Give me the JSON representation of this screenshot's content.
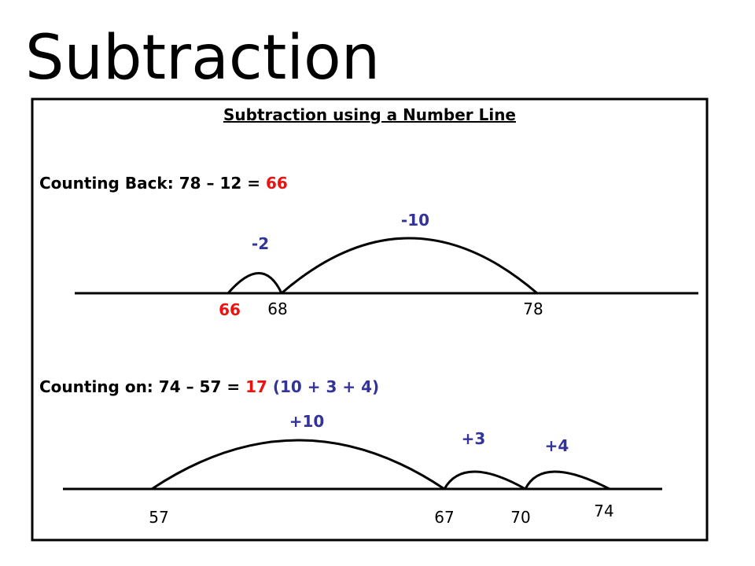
{
  "title": "Subtraction",
  "panel": {
    "heading": "Subtraction using a Number Line",
    "examples": [
      {
        "label": "Counting Back:",
        "expression": "78 – 12 =",
        "answer": "66",
        "jumps": [
          "-2",
          "-10"
        ],
        "marks": [
          "66",
          "68",
          "78"
        ]
      },
      {
        "label": "Counting on:",
        "expression": "74 – 57 =",
        "answer": "17",
        "breakdown": "(10 + 3 + 4)",
        "jumps": [
          "+10",
          "+3",
          "+4"
        ],
        "marks": [
          "57",
          "67",
          "70",
          "74"
        ]
      }
    ]
  }
}
